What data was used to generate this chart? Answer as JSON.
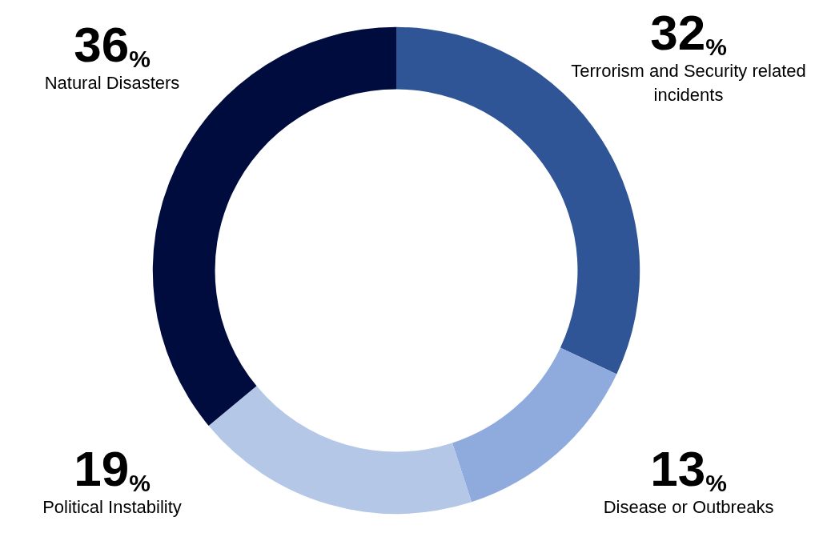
{
  "chart_data": {
    "type": "donut",
    "categories": [
      "Terrorism and Security related incidents",
      "Disease or Outbreaks",
      "Political Instability",
      "Natural Disasters"
    ],
    "values": [
      32,
      13,
      19,
      36
    ],
    "value_labels": [
      "32%",
      "13%",
      "19%",
      "36%"
    ],
    "colors": [
      "#2f5597",
      "#8faadc",
      "#b4c7e7",
      "#000c3e"
    ],
    "legend": false
  }
}
